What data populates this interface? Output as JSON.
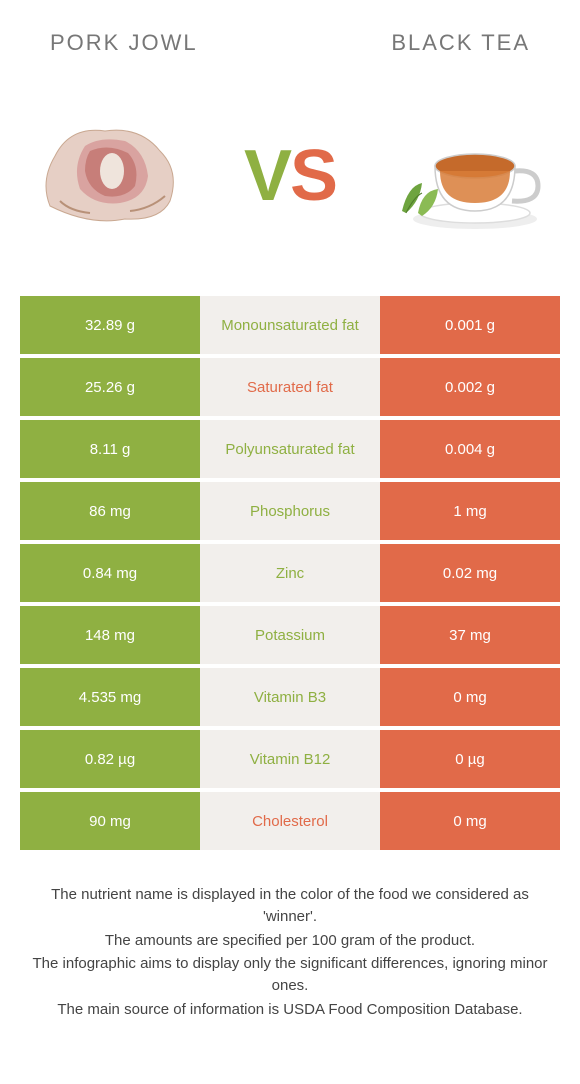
{
  "header": {
    "left_title": "PORK JOWL",
    "right_title": "BLACK TEA"
  },
  "vs": {
    "v": "V",
    "s": "S"
  },
  "colors": {
    "left": "#8fb042",
    "right": "#e16a49",
    "mid_bg": "#f2efec",
    "text_white": "#ffffff"
  },
  "rows": [
    {
      "left": "32.89 g",
      "label": "Monounsaturated fat",
      "right": "0.001 g",
      "winner": "left"
    },
    {
      "left": "25.26 g",
      "label": "Saturated fat",
      "right": "0.002 g",
      "winner": "right"
    },
    {
      "left": "8.11 g",
      "label": "Polyunsaturated fat",
      "right": "0.004 g",
      "winner": "left"
    },
    {
      "left": "86 mg",
      "label": "Phosphorus",
      "right": "1 mg",
      "winner": "left"
    },
    {
      "left": "0.84 mg",
      "label": "Zinc",
      "right": "0.02 mg",
      "winner": "left"
    },
    {
      "left": "148 mg",
      "label": "Potassium",
      "right": "37 mg",
      "winner": "left"
    },
    {
      "left": "4.535 mg",
      "label": "Vitamin B3",
      "right": "0 mg",
      "winner": "left"
    },
    {
      "left": "0.82 µg",
      "label": "Vitamin B12",
      "right": "0 µg",
      "winner": "left"
    },
    {
      "left": "90 mg",
      "label": "Cholesterol",
      "right": "0 mg",
      "winner": "right"
    }
  ],
  "footer": {
    "l1": "The nutrient name is displayed in the color of the food we considered as 'winner'.",
    "l2": "The amounts are specified per 100 gram of the product.",
    "l3": "The infographic aims to display only the significant differences, ignoring minor ones.",
    "l4": "The main source of information is USDA Food Composition Database."
  }
}
